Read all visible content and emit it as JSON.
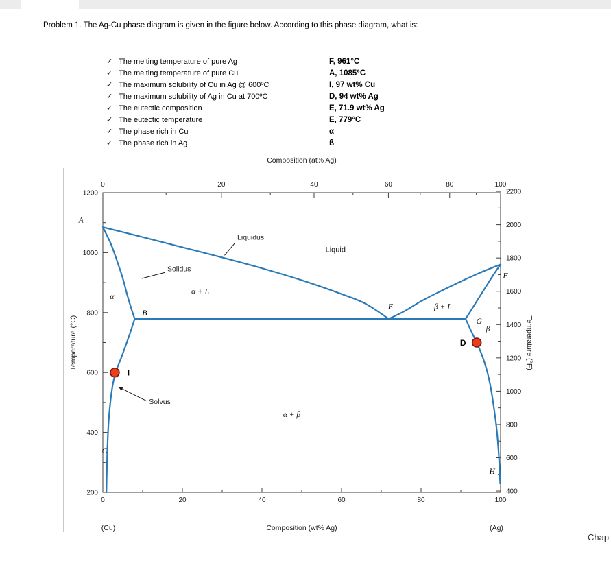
{
  "page": {
    "title": "Problem 1. The Ag-Cu phase diagram is given in the figure below. According to this phase diagram, what is:",
    "corner_text": "Chap"
  },
  "checklist": {
    "items": [
      {
        "mark": "✓",
        "text": "The melting temperature of pure Ag",
        "answer": "F, 961°C"
      },
      {
        "mark": "✓",
        "text": "The melting temperature of pure Cu",
        "answer": "A, 1085°C"
      },
      {
        "mark": "✓",
        "text": "The maximum solubility of Cu in Ag @ 600ºC",
        "answer": "I, 97 wt% Cu"
      },
      {
        "mark": "✓",
        "text": "The maximum solubility of Ag in Cu at 700ºC",
        "answer": "D, 94 wt% Ag"
      },
      {
        "mark": "✓",
        "text": "The eutectic composition",
        "answer": "E, 71.9 wt% Ag"
      },
      {
        "mark": "✓",
        "text": "The eutectic temperature",
        "answer": "E, 779°C"
      },
      {
        "mark": "✓",
        "text": "The phase rich in Cu",
        "answer": "α"
      },
      {
        "mark": "✓",
        "text": "The phase rich in Ag",
        "answer": "ß"
      }
    ]
  },
  "chart_data": {
    "type": "line",
    "description": "Ag-Cu eutectic phase diagram",
    "curve_color": "#2b7ab8",
    "frame_color": "#3c3c3c",
    "axes": {
      "top": {
        "label": "Composition (at% Ag)",
        "ticks": [
          {
            "label": "0",
            "wt": 0
          },
          {
            "label": "20",
            "wt": 29.8
          },
          {
            "label": "40",
            "wt": 53.1
          },
          {
            "label": "60",
            "wt": 71.8
          },
          {
            "label": "80",
            "wt": 87.2
          },
          {
            "label": "100",
            "wt": 100
          }
        ],
        "minor_wt": [
          15.9,
          42.1,
          62.9,
          79.8,
          93.9
        ]
      },
      "bottom": {
        "label": "Composition (wt% Ag)",
        "ticks": [
          0,
          20,
          40,
          60,
          80,
          100
        ],
        "minor": [
          10,
          30,
          50,
          70,
          90
        ],
        "end_left": "(Cu)",
        "end_right": "(Ag)"
      },
      "left": {
        "label": "Temperature (°C)",
        "range": [
          200,
          1200
        ],
        "ticks": [
          200,
          400,
          600,
          800,
          1000,
          1200
        ],
        "minor": [
          300,
          500,
          700,
          900,
          1100
        ]
      },
      "right": {
        "label": "Temperature (°F)",
        "ticks": [
          400,
          600,
          800,
          1000,
          1200,
          1400,
          1600,
          1800,
          2000,
          2200
        ],
        "minor": [
          500,
          700,
          900,
          1100,
          1300,
          1500,
          1700,
          1900,
          2100
        ]
      }
    },
    "curves": [
      {
        "name": "liquidus-left",
        "points": [
          [
            0,
            1085
          ],
          [
            10,
            1052
          ],
          [
            20,
            1018
          ],
          [
            30,
            984
          ],
          [
            40,
            948
          ],
          [
            50,
            908
          ],
          [
            60,
            862
          ],
          [
            66,
            830
          ],
          [
            71.9,
            779
          ]
        ]
      },
      {
        "name": "liquidus-right",
        "points": [
          [
            71.9,
            779
          ],
          [
            76,
            806
          ],
          [
            80,
            838
          ],
          [
            85,
            872
          ],
          [
            90,
            904
          ],
          [
            95,
            934
          ],
          [
            100,
            961
          ]
        ]
      },
      {
        "name": "solidus-left",
        "points": [
          [
            0,
            1085
          ],
          [
            2,
            1030
          ],
          [
            3.5,
            975
          ],
          [
            5,
            915
          ],
          [
            6,
            865
          ],
          [
            7,
            820
          ],
          [
            8,
            779
          ]
        ]
      },
      {
        "name": "solidus-right",
        "points": [
          [
            100,
            961
          ],
          [
            98,
            922
          ],
          [
            96,
            880
          ],
          [
            94,
            838
          ],
          [
            92.5,
            806
          ],
          [
            91.2,
            779
          ]
        ]
      },
      {
        "name": "solvus-left",
        "points": [
          [
            8,
            779
          ],
          [
            6.8,
            730
          ],
          [
            5.6,
            685
          ],
          [
            4.5,
            645
          ],
          [
            3.6,
            615
          ],
          [
            3.0,
            590
          ],
          [
            2.5,
            560
          ],
          [
            2.1,
            525
          ],
          [
            1.8,
            490
          ],
          [
            1.5,
            445
          ],
          [
            1.3,
            400
          ],
          [
            1.15,
            350
          ],
          [
            1.05,
            300
          ],
          [
            0.95,
            240
          ],
          [
            0.9,
            200
          ]
        ]
      },
      {
        "name": "solvus-right",
        "points": [
          [
            91.2,
            779
          ],
          [
            92.2,
            750
          ],
          [
            93.2,
            722
          ],
          [
            94,
            700
          ],
          [
            94.9,
            672
          ],
          [
            95.8,
            640
          ],
          [
            96.6,
            605
          ],
          [
            97.3,
            565
          ],
          [
            97.9,
            520
          ],
          [
            98.4,
            475
          ],
          [
            98.9,
            425
          ],
          [
            99.3,
            370
          ],
          [
            99.6,
            315
          ],
          [
            99.8,
            262
          ],
          [
            99.9,
            230
          ]
        ]
      },
      {
        "name": "eutectic-line",
        "points": [
          [
            8,
            779
          ],
          [
            91.2,
            779
          ]
        ]
      }
    ],
    "key_points": [
      {
        "name": "A",
        "wt": 0,
        "t": 1085,
        "label_wt": -5.5,
        "label_t": 1100
      },
      {
        "name": "B",
        "wt": 8,
        "t": 779,
        "label_wt": 10.5,
        "label_t": 790
      },
      {
        "name": "C",
        "wt": 1,
        "t": 200,
        "label_wt": 0.4,
        "label_t": 330
      },
      {
        "name": "E",
        "wt": 71.9,
        "t": 779,
        "label_wt": 72.3,
        "label_t": 812
      },
      {
        "name": "F",
        "wt": 100,
        "t": 961,
        "label_wt": 101.2,
        "label_t": 915
      },
      {
        "name": "G",
        "wt": 91.2,
        "t": 779,
        "label_wt": 94.6,
        "label_t": 763
      },
      {
        "name": "H",
        "wt": 99.8,
        "t": 230,
        "label_wt": 97.9,
        "label_t": 262
      }
    ],
    "region_labels": [
      {
        "text": "Liquid",
        "wt": 58.5,
        "t": 1002,
        "italic": false
      },
      {
        "text": "α",
        "wt": 2.3,
        "t": 845,
        "italic": true
      },
      {
        "text": "β",
        "wt": 96.8,
        "t": 738,
        "italic": true
      },
      {
        "text": "α + L",
        "wt": 24.5,
        "t": 862,
        "italic": true
      },
      {
        "text": "β + L",
        "wt": 85.5,
        "t": 812,
        "italic": true
      },
      {
        "text": "α + β",
        "wt": 47.5,
        "t": 452,
        "italic": true
      }
    ],
    "annotations": [
      {
        "text": "Liquidus",
        "text_wt": 33.8,
        "text_t": 1043,
        "line": [
          [
            33.2,
            1032
          ],
          [
            30.6,
            991
          ]
        ],
        "arrow": false
      },
      {
        "text": "Solidus",
        "text_wt": 16.2,
        "text_t": 938,
        "line": [
          [
            15.6,
            934
          ],
          [
            9.8,
            914
          ]
        ],
        "arrow": false
      },
      {
        "text": "Solvus",
        "text_wt": 11.6,
        "text_t": 495,
        "line": [
          [
            11.0,
            505
          ],
          [
            3.9,
            552
          ]
        ],
        "arrow": true
      }
    ],
    "markers": [
      {
        "label": "I",
        "wt": 3,
        "t": 600,
        "label_side": "right",
        "fill": "#e8401c",
        "stroke": "#7a1508"
      },
      {
        "label": "D",
        "wt": 94,
        "t": 700,
        "label_side": "left",
        "fill": "#e8401c",
        "stroke": "#7a1508"
      }
    ]
  }
}
